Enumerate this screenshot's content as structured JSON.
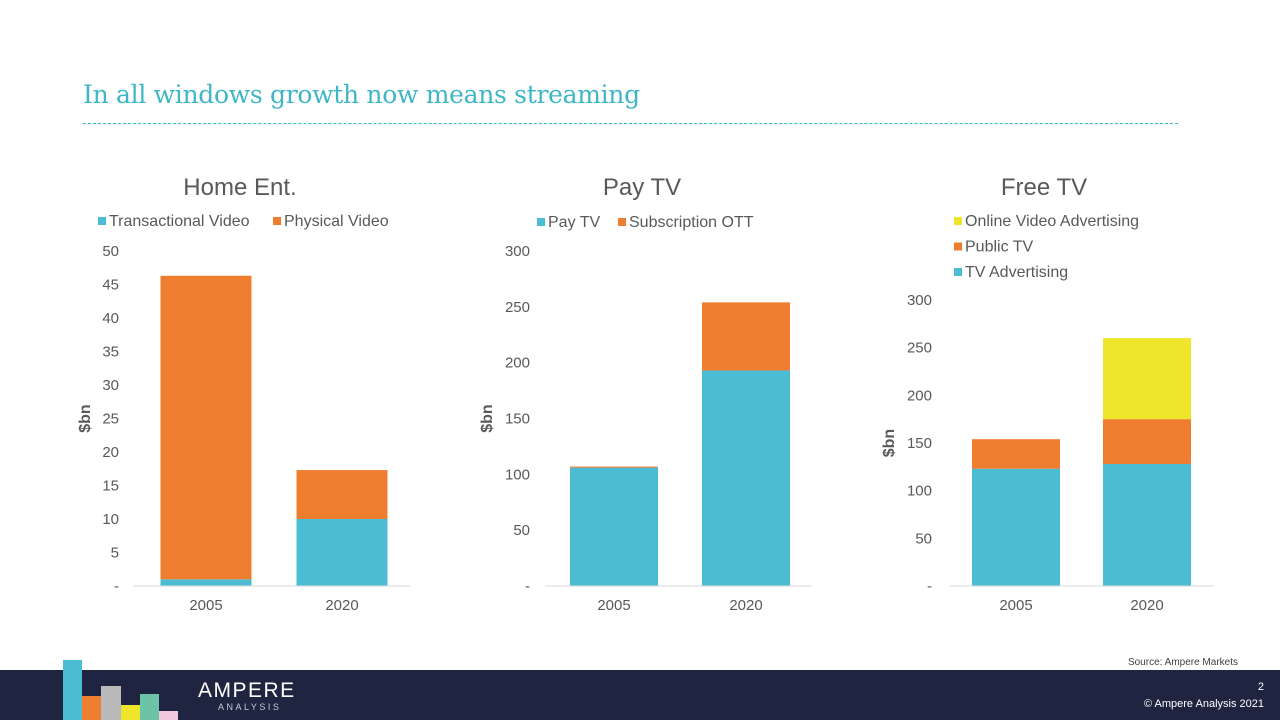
{
  "slide": {
    "title": "In all windows growth now means streaming",
    "source": "Source: Ampere Markets",
    "page_number": "2",
    "copyright": "© Ampere Analysis 2021",
    "brand_name": "AMPERE",
    "brand_sub": "ANALYSIS"
  },
  "colors": {
    "teal": "#4bbcd2",
    "orange": "#ef7d2f",
    "yellow": "#efe52a",
    "title": "#3fb6c6",
    "footer": "#1f2440"
  },
  "chart_data": [
    {
      "type": "bar",
      "stacked": true,
      "title": "Home Ent.",
      "ylabel": "$bn",
      "categories": [
        "2005",
        "2020"
      ],
      "ylim": [
        0,
        50
      ],
      "yticks": [
        "-",
        "5",
        "10",
        "15",
        "20",
        "25",
        "30",
        "35",
        "40",
        "45",
        "50"
      ],
      "legend_position": "top",
      "series": [
        {
          "name": "Transactional Video",
          "color": "#4bbcd2",
          "values": [
            1,
            10
          ]
        },
        {
          "name": "Physical Video",
          "color": "#ef7d2f",
          "values": [
            45.3,
            7.3
          ]
        }
      ]
    },
    {
      "type": "bar",
      "stacked": true,
      "title": "Pay TV",
      "ylabel": "$bn",
      "categories": [
        "2005",
        "2020"
      ],
      "ylim": [
        0,
        300
      ],
      "yticks": [
        "-",
        "50",
        "100",
        "150",
        "200",
        "250",
        "300"
      ],
      "legend_position": "top",
      "series": [
        {
          "name": "Pay TV",
          "color": "#4bbcd2",
          "values": [
            106,
            193
          ]
        },
        {
          "name": "Subscription OTT",
          "color": "#ef7d2f",
          "values": [
            1,
            61
          ]
        }
      ]
    },
    {
      "type": "bar",
      "stacked": true,
      "title": "Free TV",
      "ylabel": "$bn",
      "categories": [
        "2005",
        "2020"
      ],
      "ylim": [
        0,
        300
      ],
      "yticks": [
        "-",
        "50",
        "100",
        "150",
        "200",
        "250",
        "300"
      ],
      "legend_position": "top",
      "series": [
        {
          "name": "TV Advertising",
          "color": "#4bbcd2",
          "values": [
            123,
            128
          ]
        },
        {
          "name": "Public TV",
          "color": "#ef7d2f",
          "values": [
            31,
            47
          ]
        },
        {
          "name": "Online Video Advertising",
          "color": "#efe52a",
          "values": [
            0,
            85
          ]
        }
      ]
    }
  ]
}
